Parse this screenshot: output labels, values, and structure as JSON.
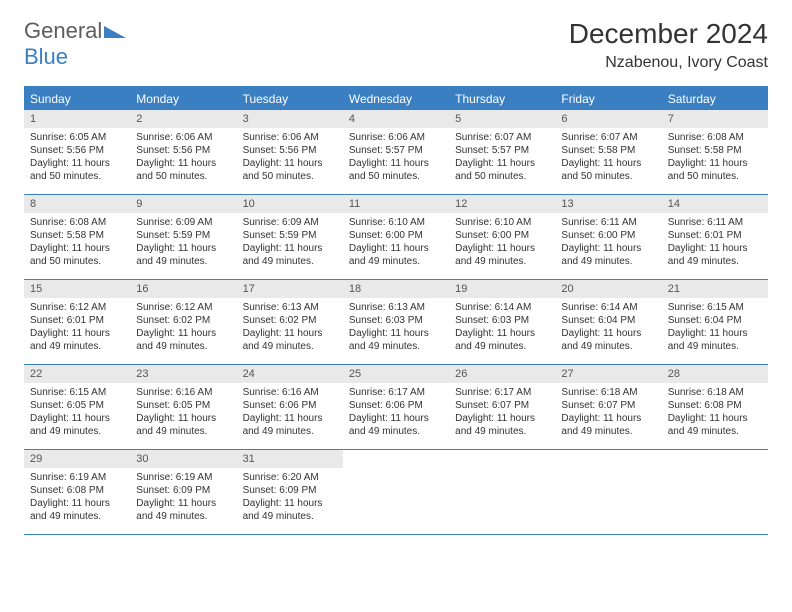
{
  "logo": {
    "part1": "General",
    "part2": "Blue",
    "triangle_color": "#3a7fc2"
  },
  "title": "December 2024",
  "location": "Nzabenou, Ivory Coast",
  "colors": {
    "header_bg": "#3a7fc2",
    "border": "#3a7fc2",
    "daynum_bg": "#e9e9e9",
    "text": "#333333",
    "logo_gray": "#5d5d5d"
  },
  "weekdays": [
    "Sunday",
    "Monday",
    "Tuesday",
    "Wednesday",
    "Thursday",
    "Friday",
    "Saturday"
  ],
  "weeks": [
    [
      {
        "n": "1",
        "sunrise": "6:05 AM",
        "sunset": "5:56 PM",
        "daylight": "11 hours and 50 minutes."
      },
      {
        "n": "2",
        "sunrise": "6:06 AM",
        "sunset": "5:56 PM",
        "daylight": "11 hours and 50 minutes."
      },
      {
        "n": "3",
        "sunrise": "6:06 AM",
        "sunset": "5:56 PM",
        "daylight": "11 hours and 50 minutes."
      },
      {
        "n": "4",
        "sunrise": "6:06 AM",
        "sunset": "5:57 PM",
        "daylight": "11 hours and 50 minutes."
      },
      {
        "n": "5",
        "sunrise": "6:07 AM",
        "sunset": "5:57 PM",
        "daylight": "11 hours and 50 minutes."
      },
      {
        "n": "6",
        "sunrise": "6:07 AM",
        "sunset": "5:58 PM",
        "daylight": "11 hours and 50 minutes."
      },
      {
        "n": "7",
        "sunrise": "6:08 AM",
        "sunset": "5:58 PM",
        "daylight": "11 hours and 50 minutes."
      }
    ],
    [
      {
        "n": "8",
        "sunrise": "6:08 AM",
        "sunset": "5:58 PM",
        "daylight": "11 hours and 50 minutes."
      },
      {
        "n": "9",
        "sunrise": "6:09 AM",
        "sunset": "5:59 PM",
        "daylight": "11 hours and 49 minutes."
      },
      {
        "n": "10",
        "sunrise": "6:09 AM",
        "sunset": "5:59 PM",
        "daylight": "11 hours and 49 minutes."
      },
      {
        "n": "11",
        "sunrise": "6:10 AM",
        "sunset": "6:00 PM",
        "daylight": "11 hours and 49 minutes."
      },
      {
        "n": "12",
        "sunrise": "6:10 AM",
        "sunset": "6:00 PM",
        "daylight": "11 hours and 49 minutes."
      },
      {
        "n": "13",
        "sunrise": "6:11 AM",
        "sunset": "6:00 PM",
        "daylight": "11 hours and 49 minutes."
      },
      {
        "n": "14",
        "sunrise": "6:11 AM",
        "sunset": "6:01 PM",
        "daylight": "11 hours and 49 minutes."
      }
    ],
    [
      {
        "n": "15",
        "sunrise": "6:12 AM",
        "sunset": "6:01 PM",
        "daylight": "11 hours and 49 minutes."
      },
      {
        "n": "16",
        "sunrise": "6:12 AM",
        "sunset": "6:02 PM",
        "daylight": "11 hours and 49 minutes."
      },
      {
        "n": "17",
        "sunrise": "6:13 AM",
        "sunset": "6:02 PM",
        "daylight": "11 hours and 49 minutes."
      },
      {
        "n": "18",
        "sunrise": "6:13 AM",
        "sunset": "6:03 PM",
        "daylight": "11 hours and 49 minutes."
      },
      {
        "n": "19",
        "sunrise": "6:14 AM",
        "sunset": "6:03 PM",
        "daylight": "11 hours and 49 minutes."
      },
      {
        "n": "20",
        "sunrise": "6:14 AM",
        "sunset": "6:04 PM",
        "daylight": "11 hours and 49 minutes."
      },
      {
        "n": "21",
        "sunrise": "6:15 AM",
        "sunset": "6:04 PM",
        "daylight": "11 hours and 49 minutes."
      }
    ],
    [
      {
        "n": "22",
        "sunrise": "6:15 AM",
        "sunset": "6:05 PM",
        "daylight": "11 hours and 49 minutes."
      },
      {
        "n": "23",
        "sunrise": "6:16 AM",
        "sunset": "6:05 PM",
        "daylight": "11 hours and 49 minutes."
      },
      {
        "n": "24",
        "sunrise": "6:16 AM",
        "sunset": "6:06 PM",
        "daylight": "11 hours and 49 minutes."
      },
      {
        "n": "25",
        "sunrise": "6:17 AM",
        "sunset": "6:06 PM",
        "daylight": "11 hours and 49 minutes."
      },
      {
        "n": "26",
        "sunrise": "6:17 AM",
        "sunset": "6:07 PM",
        "daylight": "11 hours and 49 minutes."
      },
      {
        "n": "27",
        "sunrise": "6:18 AM",
        "sunset": "6:07 PM",
        "daylight": "11 hours and 49 minutes."
      },
      {
        "n": "28",
        "sunrise": "6:18 AM",
        "sunset": "6:08 PM",
        "daylight": "11 hours and 49 minutes."
      }
    ],
    [
      {
        "n": "29",
        "sunrise": "6:19 AM",
        "sunset": "6:08 PM",
        "daylight": "11 hours and 49 minutes."
      },
      {
        "n": "30",
        "sunrise": "6:19 AM",
        "sunset": "6:09 PM",
        "daylight": "11 hours and 49 minutes."
      },
      {
        "n": "31",
        "sunrise": "6:20 AM",
        "sunset": "6:09 PM",
        "daylight": "11 hours and 49 minutes."
      },
      null,
      null,
      null,
      null
    ]
  ],
  "labels": {
    "sunrise": "Sunrise:",
    "sunset": "Sunset:",
    "daylight": "Daylight:"
  }
}
